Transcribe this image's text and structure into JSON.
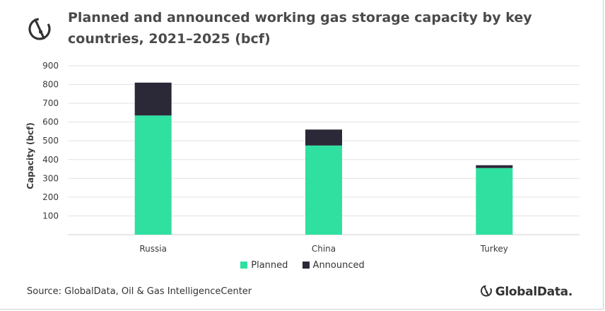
{
  "colors": {
    "planned": "#2fe0a0",
    "announced": "#2b2838",
    "grid": "#e3e3e3",
    "text": "#3a3a3a"
  },
  "header": {
    "title_line1": "Planned and announced working gas storage capacity by key",
    "title_line2": "countries, 2021–2025 (bcf)",
    "logo_icon": "globaldata-logo-icon"
  },
  "footer": {
    "source": "Source: GlobalData, Oil & Gas IntelligenceCenter",
    "brand": "GlobalData."
  },
  "chart_data": {
    "type": "bar",
    "stacked": true,
    "title": "Planned and announced working gas storage capacity by key countries, 2021–2025 (bcf)",
    "xlabel": "",
    "ylabel": "Capacity (bcf)",
    "ylim": [
      0,
      900
    ],
    "yticks": [
      100,
      200,
      300,
      400,
      500,
      600,
      700,
      800,
      900
    ],
    "grid": true,
    "legend_position": "bottom",
    "categories": [
      "Russia",
      "China",
      "Turkey"
    ],
    "series": [
      {
        "name": "Planned",
        "values": [
          635,
          475,
          355
        ]
      },
      {
        "name": "Announced",
        "values": [
          175,
          85,
          15
        ]
      }
    ]
  }
}
